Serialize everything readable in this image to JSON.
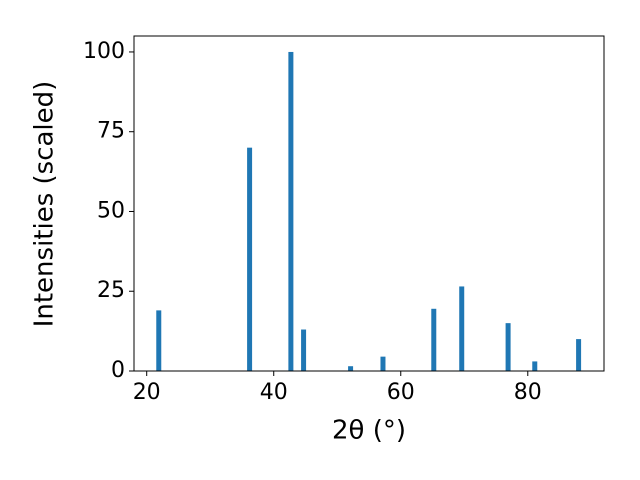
{
  "chart_data": {
    "type": "bar",
    "x": [
      21.9,
      36.2,
      42.7,
      44.7,
      52.1,
      57.2,
      65.2,
      69.6,
      76.9,
      81.1,
      88.0
    ],
    "values": [
      19,
      70,
      100,
      13,
      1.5,
      4.5,
      19.5,
      26.5,
      15,
      3,
      10
    ],
    "color": "#1f77b4",
    "xlabel": "2θ (°)",
    "ylabel": "Intensities (scaled)",
    "xlim": [
      18,
      92
    ],
    "xticks": [
      20,
      40,
      60,
      80
    ],
    "ylim": [
      0,
      105
    ],
    "yticks": [
      0,
      25,
      50,
      75,
      100
    ],
    "grid": false
  }
}
